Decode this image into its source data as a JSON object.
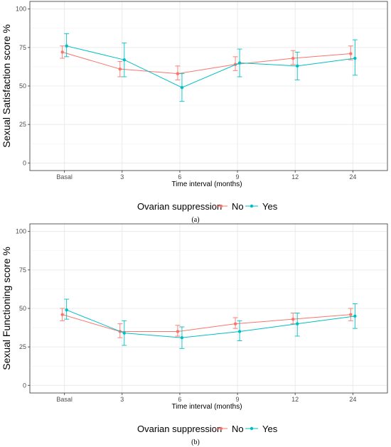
{
  "chart_data": [
    {
      "type": "line",
      "panel_label": "(a)",
      "xlabel": "Time interval (months)",
      "ylabel": "Sexual Satisfaction score %",
      "categories": [
        "Basal",
        "3",
        "6",
        "9",
        "12",
        "24"
      ],
      "ylim": [
        0,
        100
      ],
      "yticks": [
        0,
        25,
        50,
        75,
        100
      ],
      "grid": true,
      "legend": {
        "title": "Ovarian suppression",
        "position": "bottom"
      },
      "series": [
        {
          "name": "No",
          "color": "#F8766D",
          "values": [
            72,
            61,
            58,
            64,
            68,
            71
          ],
          "lower": [
            68,
            56,
            54,
            60,
            64,
            67
          ],
          "upper": [
            76,
            66,
            63,
            69,
            73,
            76
          ]
        },
        {
          "name": "Yes",
          "color": "#00BFC4",
          "values": [
            76,
            67,
            49,
            65,
            63,
            68
          ],
          "lower": [
            69,
            56,
            40,
            56,
            54,
            57
          ],
          "upper": [
            84,
            78,
            58,
            74,
            72,
            80
          ]
        }
      ]
    },
    {
      "type": "line",
      "panel_label": "(b)",
      "xlabel": "Time interval (months)",
      "ylabel": "Sexual Functioning score %",
      "categories": [
        "Basal",
        "3",
        "6",
        "9",
        "12",
        "24"
      ],
      "ylim": [
        0,
        100
      ],
      "yticks": [
        0,
        25,
        50,
        75,
        100
      ],
      "grid": true,
      "legend": {
        "title": "Ovarian suppression",
        "position": "bottom"
      },
      "series": [
        {
          "name": "No",
          "color": "#F8766D",
          "values": [
            46,
            35,
            35,
            40,
            43,
            46
          ],
          "lower": [
            42,
            31,
            32,
            37,
            40,
            42
          ],
          "upper": [
            50,
            40,
            39,
            44,
            47,
            50
          ]
        },
        {
          "name": "Yes",
          "color": "#00BFC4",
          "values": [
            49,
            34,
            31,
            35,
            40,
            45
          ],
          "lower": [
            43,
            26,
            24,
            29,
            32,
            37
          ],
          "upper": [
            56,
            42,
            38,
            42,
            47,
            53
          ]
        }
      ]
    }
  ]
}
